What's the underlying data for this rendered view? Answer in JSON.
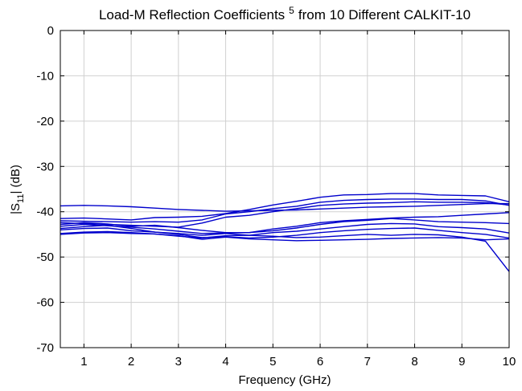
{
  "chart_data": {
    "type": "line",
    "title": "Load-M Reflection Coefficients",
    "title_superscript": "5",
    "title_suffix": "from 10 Different CALKIT-10",
    "xlabel": "Frequency (GHz)",
    "ylabel": "|S",
    "ylabel_subscript": "11",
    "ylabel_suffix": "| (dB)",
    "xlim": [
      0.5,
      10
    ],
    "ylim": [
      -70,
      0
    ],
    "xticks": [
      1,
      2,
      3,
      4,
      5,
      6,
      7,
      8,
      9,
      10
    ],
    "yticks": [
      0,
      -10,
      -20,
      -30,
      -40,
      -50,
      -60,
      -70
    ],
    "grid": true,
    "line_color": "#0000cc",
    "x": [
      0.5,
      1,
      1.5,
      2,
      2.5,
      3,
      3.5,
      4,
      4.5,
      5,
      5.5,
      6,
      6.5,
      7,
      7.5,
      8,
      8.5,
      9,
      9.5,
      10
    ],
    "series": [
      {
        "values": [
          -38.7,
          -38.6,
          -38.7,
          -38.9,
          -39.2,
          -39.5,
          -39.7,
          -39.9,
          -39.8,
          -39.7,
          -39.6,
          -39.4,
          -39.2,
          -39.0,
          -38.9,
          -38.8,
          -38.6,
          -38.4,
          -38.2,
          -38.2
        ]
      },
      {
        "values": [
          -41.5,
          -41.4,
          -41.6,
          -41.8,
          -41.3,
          -41.2,
          -41.0,
          -40.4,
          -39.5,
          -38.5,
          -37.7,
          -36.8,
          -36.3,
          -36.2,
          -36.0,
          -36.0,
          -36.3,
          -36.4,
          -36.5,
          -37.8
        ]
      },
      {
        "values": [
          -42.0,
          -42.1,
          -42.2,
          -42.3,
          -42.2,
          -42.3,
          -41.8,
          -40.5,
          -40.0,
          -39.3,
          -38.8,
          -37.9,
          -37.5,
          -37.3,
          -37.2,
          -37.2,
          -37.3,
          -37.3,
          -37.6,
          -38.6
        ]
      },
      {
        "values": [
          -42.4,
          -42.6,
          -42.8,
          -43.0,
          -43.2,
          -43.4,
          -42.5,
          -41.2,
          -40.8,
          -40.0,
          -39.3,
          -38.6,
          -38.3,
          -38.1,
          -38.0,
          -37.8,
          -37.9,
          -37.9,
          -38.0,
          -38.5
        ]
      },
      {
        "values": [
          -42.8,
          -42.4,
          -42.7,
          -43.2,
          -43.0,
          -43.5,
          -44.1,
          -44.6,
          -44.6,
          -43.8,
          -43.2,
          -42.4,
          -42.0,
          -41.7,
          -41.4,
          -41.2,
          -41.1,
          -40.8,
          -40.5,
          -40.2
        ]
      },
      {
        "values": [
          -43.2,
          -42.8,
          -43.1,
          -43.4,
          -43.8,
          -44.3,
          -44.8,
          -44.7,
          -44.6,
          -44.2,
          -43.6,
          -42.8,
          -42.2,
          -41.9,
          -41.5,
          -41.8,
          -42.2,
          -42.3,
          -42.4,
          -42.6
        ]
      },
      {
        "values": [
          -43.7,
          -43.3,
          -43.0,
          -43.7,
          -44.5,
          -44.8,
          -45.2,
          -44.8,
          -45.2,
          -44.6,
          -44.3,
          -43.8,
          -43.3,
          -42.8,
          -42.6,
          -42.7,
          -43.3,
          -43.5,
          -43.8,
          -44.7
        ]
      },
      {
        "values": [
          -44.0,
          -43.7,
          -43.6,
          -44.2,
          -44.5,
          -45.0,
          -45.7,
          -45.5,
          -45.8,
          -45.6,
          -45.2,
          -44.6,
          -44.2,
          -43.9,
          -43.7,
          -43.6,
          -44.1,
          -44.6,
          -45.0,
          -45.8
        ]
      },
      {
        "values": [
          -44.8,
          -44.5,
          -44.4,
          -44.6,
          -44.9,
          -45.3,
          -46.1,
          -45.6,
          -46.0,
          -46.2,
          -46.4,
          -46.3,
          -46.2,
          -46.1,
          -45.9,
          -45.8,
          -45.7,
          -45.8,
          -46.2,
          -46.0
        ]
      },
      {
        "values": [
          -45.0,
          -44.7,
          -44.6,
          -44.8,
          -44.9,
          -45.4,
          -45.8,
          -45.3,
          -45.2,
          -45.4,
          -45.7,
          -45.6,
          -45.3,
          -45.0,
          -45.2,
          -45.0,
          -45.1,
          -45.6,
          -46.5,
          -53.2
        ]
      }
    ]
  }
}
